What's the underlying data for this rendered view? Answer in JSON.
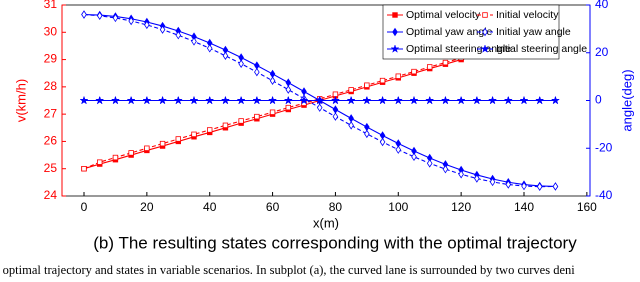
{
  "chart_data": {
    "type": "line",
    "x": [
      0,
      5,
      10,
      15,
      20,
      25,
      30,
      35,
      40,
      45,
      50,
      55,
      60,
      65,
      70,
      75,
      80,
      85,
      90,
      95,
      100,
      105,
      110,
      115,
      120,
      125,
      130,
      135,
      140,
      145,
      150
    ],
    "xlabel": "x(m)",
    "ylabel": "v(km/h)",
    "y2label": "angle(deg)",
    "xlim": [
      -7,
      161
    ],
    "xticks": [
      0,
      20,
      40,
      60,
      80,
      100,
      120,
      140,
      160
    ],
    "ylim": [
      24,
      31
    ],
    "yticks": [
      24,
      25,
      26,
      27,
      28,
      29,
      30,
      31
    ],
    "y2lim": [
      -40,
      40
    ],
    "y2ticks": [
      -40,
      -20,
      0,
      20,
      40
    ],
    "ycolor": "#ff0000",
    "y2color": "#0000ff",
    "legend": "upper right",
    "series": [
      {
        "name": "Optimal velocity",
        "color": "#ff0000",
        "line_style": "solid",
        "marker": "square-filled",
        "axis": "y",
        "values": [
          25,
          25.17,
          25.33,
          25.5,
          25.67,
          25.83,
          26,
          26.17,
          26.33,
          26.5,
          26.67,
          26.83,
          27,
          27.17,
          27.33,
          27.5,
          27.67,
          27.83,
          28,
          28.17,
          28.33,
          28.5,
          28.67,
          28.83,
          29,
          29.17,
          29.33,
          29.5,
          29.67,
          29.83,
          30
        ]
      },
      {
        "name": "Initial velocity",
        "color": "#ff0000",
        "line_style": "dashed",
        "marker": "square-open",
        "axis": "y",
        "values": [
          25,
          25.24,
          25.41,
          25.58,
          25.75,
          25.92,
          26.09,
          26.26,
          26.42,
          26.59,
          26.75,
          26.91,
          27.07,
          27.24,
          27.4,
          27.56,
          27.73,
          27.89,
          28.06,
          28.23,
          28.39,
          28.56,
          28.73,
          28.89,
          29.06,
          29.23,
          29.39,
          29.56,
          29.72,
          29.88,
          30
        ]
      },
      {
        "name": "Optimal yaw angle",
        "color": "#0000ff",
        "line_style": "solid",
        "marker": "diamond-filled",
        "axis": "y2",
        "values": [
          36,
          35.8,
          35.21,
          34.24,
          32.89,
          31.18,
          29.12,
          26.75,
          24.09,
          21.16,
          18,
          14.64,
          11.12,
          7.48,
          3.76,
          0,
          -3.76,
          -7.48,
          -11.12,
          -14.64,
          -18,
          -21.16,
          -24.09,
          -26.75,
          -29.12,
          -31.18,
          -32.89,
          -34.24,
          -35.21,
          -35.8,
          -36
        ]
      },
      {
        "name": "Initial yaw angle",
        "color": "#0000ff",
        "line_style": "dashed",
        "marker": "diamond-open",
        "axis": "y2",
        "values": [
          36,
          35.49,
          34.59,
          33.31,
          31.67,
          29.68,
          27.36,
          24.74,
          21.86,
          18.73,
          15.4,
          11.9,
          8.27,
          4.55,
          0.78,
          -3,
          -6.74,
          -10.41,
          -13.97,
          -17.38,
          -20.6,
          -23.59,
          -26.32,
          -28.76,
          -30.88,
          -32.68,
          -34.11,
          -35.17,
          -35.83,
          -36.11,
          -36
        ]
      },
      {
        "name": "Optimal steering angle",
        "color": "#0000ff",
        "line_style": "solid",
        "marker": "star",
        "axis": "y2",
        "values": [
          0,
          0,
          0,
          0,
          0,
          0,
          0,
          0,
          0,
          0,
          0,
          0,
          0,
          0,
          0,
          0,
          0,
          0,
          0,
          0,
          0,
          0,
          0,
          0,
          0,
          0,
          0,
          0,
          0,
          0,
          0
        ]
      },
      {
        "name": "Intial steering angle",
        "color": "#0000ff",
        "line_style": "dashed",
        "marker": "star",
        "axis": "y2",
        "values": [
          0,
          0,
          0,
          0,
          0,
          0,
          0,
          0,
          0,
          0,
          0,
          0,
          0,
          0,
          0,
          0,
          0,
          0,
          0,
          0,
          0,
          0,
          0,
          0,
          0,
          0,
          0,
          0,
          0,
          0,
          0
        ]
      }
    ]
  },
  "caption": "(b) The resulting states corresponding with the optimal trajectory",
  "body_text": "e optimal trajectory and states in variable scenarios. In subplot (a), the curved lane is surrounded by two curves deni"
}
